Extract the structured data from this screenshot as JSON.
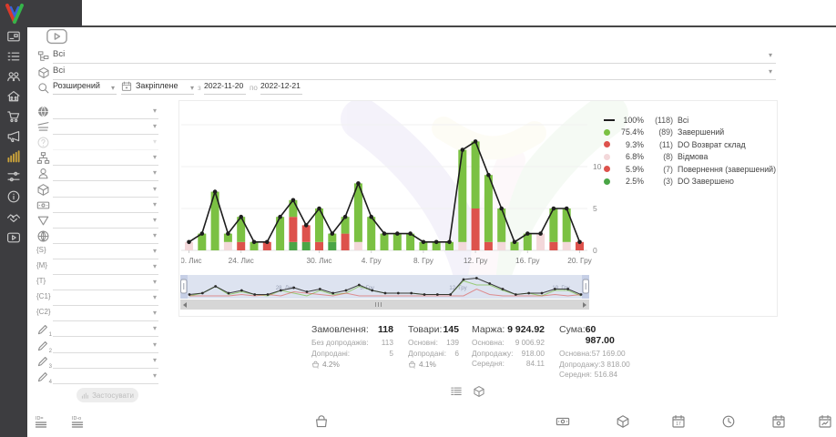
{
  "brand": {
    "logo": "v-logo"
  },
  "sidebar": {
    "items": [
      {
        "icon": "card-icon"
      },
      {
        "icon": "list-icon"
      },
      {
        "icon": "users-icon"
      },
      {
        "icon": "home-users-icon"
      },
      {
        "icon": "cart-icon"
      },
      {
        "icon": "megaphone-icon"
      },
      {
        "icon": "bar-chart-icon",
        "active": true
      },
      {
        "icon": "sliders-icon"
      },
      {
        "icon": "info-icon"
      },
      {
        "icon": "handshake-icon"
      },
      {
        "icon": "video-icon"
      }
    ]
  },
  "header": {
    "video_button_icon": "play-icon",
    "filter_rows": [
      {
        "icon": "org-tree-icon",
        "value": "Всі"
      },
      {
        "icon": "cube-icon",
        "value": "Всі"
      }
    ],
    "search": {
      "icon": "search-icon",
      "mode": "Розширений"
    },
    "period": {
      "icon": "calendar-icon",
      "mode": "Закріплене",
      "from_label": "з",
      "from": "2022-11-20",
      "to_label": "по",
      "to": "2022-12-21"
    }
  },
  "filter_panel": {
    "rows": [
      {
        "icon": "globe-solid-icon"
      },
      {
        "icon": "sort-lines-icon"
      },
      {
        "icon": "help-circle-icon",
        "muted": true
      },
      {
        "icon": "sitemap-icon"
      },
      {
        "icon": "person-icon"
      },
      {
        "icon": "cube-icon"
      },
      {
        "icon": "banknote-icon"
      },
      {
        "icon": "funnel-icon"
      },
      {
        "icon": "globe-grid-icon"
      },
      {
        "icon": "braces-s-icon",
        "glyph": "{S}"
      },
      {
        "icon": "braces-m-icon",
        "glyph": "{М}"
      },
      {
        "icon": "braces-t-icon",
        "glyph": "{Т}"
      },
      {
        "icon": "braces-c1-icon",
        "glyph": "{С1}"
      },
      {
        "icon": "braces-c2-icon",
        "glyph": "{С2}"
      },
      {
        "icon": "pencil-1-icon",
        "num": "1"
      },
      {
        "icon": "pencil-2-icon",
        "num": "2"
      },
      {
        "icon": "pencil-3-icon",
        "num": "3"
      },
      {
        "icon": "pencil-4-icon",
        "num": "4"
      }
    ],
    "apply_button": {
      "icon": "mini-bars-icon",
      "label": "Застосувати"
    }
  },
  "chart_data": {
    "type": "bar",
    "stacked": true,
    "overlay_line": true,
    "start_date": "2022-11-20",
    "end_date": "2022-12-20",
    "x_tick_labels": [
      {
        "label": "20. Лис",
        "index": 0
      },
      {
        "label": "24. Лис",
        "index": 4
      },
      {
        "label": "30. Лис",
        "index": 10
      },
      {
        "label": "4. Гру",
        "index": 14
      },
      {
        "label": "8. Гру",
        "index": 18
      },
      {
        "label": "12. Гру",
        "index": 22
      },
      {
        "label": "16. Гру",
        "index": 26
      },
      {
        "label": "20. Гру",
        "index": 30
      }
    ],
    "yticks": [
      0,
      5,
      10
    ],
    "ylim": [
      0,
      15
    ],
    "line_series": {
      "name": "Всі",
      "color": "#1d1d1d",
      "values": [
        1,
        2,
        7,
        2,
        4,
        1,
        1,
        4,
        6,
        3,
        5,
        2,
        4,
        8,
        4,
        2,
        2,
        2,
        1,
        1,
        1,
        12,
        13,
        9,
        5,
        1,
        2,
        2,
        5,
        5,
        1
      ]
    },
    "series": [
      {
        "name": "DO Завершено",
        "color": "#4aa546",
        "values": [
          0,
          0,
          0,
          0,
          0,
          0,
          0,
          0,
          1,
          1,
          0,
          1,
          0,
          0,
          0,
          0,
          0,
          0,
          0,
          0,
          0,
          0,
          0,
          0,
          0,
          0,
          0,
          0,
          0,
          0,
          0
        ]
      },
      {
        "name": "Повернення (завершений)",
        "color": "#dd524c",
        "values": [
          0,
          0,
          0,
          0,
          1,
          0,
          1,
          0,
          0,
          0,
          1,
          0,
          2,
          0,
          0,
          0,
          0,
          0,
          0,
          0,
          0,
          0,
          0,
          0,
          0,
          0,
          0,
          0,
          1,
          0,
          1
        ]
      },
      {
        "name": "Відмова",
        "color": "#f3d8da",
        "values": [
          1,
          0,
          0,
          1,
          0,
          0,
          0,
          0,
          0,
          0,
          0,
          0,
          0,
          1,
          0,
          0,
          0,
          0,
          0,
          0,
          0,
          1,
          0,
          0,
          1,
          0,
          0,
          2,
          0,
          1,
          0
        ]
      },
      {
        "name": "DO Возврат склад",
        "color": "#dd524c",
        "values": [
          0,
          0,
          0,
          0,
          0,
          0,
          0,
          0,
          3,
          2,
          0,
          0,
          0,
          0,
          0,
          0,
          0,
          0,
          0,
          0,
          0,
          0,
          5,
          1,
          0,
          0,
          0,
          0,
          0,
          0,
          0
        ]
      },
      {
        "name": "Завершений",
        "color": "#7bc143",
        "values": [
          0,
          2,
          7,
          1,
          3,
          1,
          0,
          4,
          2,
          0,
          4,
          1,
          2,
          7,
          4,
          2,
          2,
          2,
          1,
          1,
          1,
          11,
          8,
          8,
          4,
          1,
          2,
          0,
          4,
          4,
          0
        ]
      }
    ],
    "legend": [
      {
        "swatch": "line",
        "color": "#1d1d1d",
        "pct": "100%",
        "count": "(118)",
        "label": "Всі"
      },
      {
        "swatch": "dot",
        "color": "#7bc143",
        "pct": "75.4%",
        "count": "(89)",
        "label": "Завершений"
      },
      {
        "swatch": "dot",
        "color": "#dd524c",
        "pct": "9.3%",
        "count": "(11)",
        "label": "DO Возврат склад"
      },
      {
        "swatch": "dot",
        "color": "#f3d8da",
        "pct": "6.8%",
        "count": "(8)",
        "label": "Відмова"
      },
      {
        "swatch": "dot",
        "color": "#dd524c",
        "pct": "5.9%",
        "count": "(7)",
        "label": "Повернення (завершений)"
      },
      {
        "swatch": "dot",
        "color": "#4aa546",
        "pct": "2.5%",
        "count": "(3)",
        "label": "DO Завершено"
      }
    ],
    "minimap": {
      "labels": [
        "28. Лис",
        "5. Гру",
        "12. Гру",
        "19. Гру"
      ]
    }
  },
  "stats": {
    "columns": [
      {
        "title": "Замовлення:",
        "value": "118",
        "rows": [
          {
            "label": "Без допродажів:",
            "value": "113"
          },
          {
            "label": "Допродані:",
            "value": "5"
          }
        ],
        "rate": {
          "icon": "bag-x-icon",
          "value": "4.2%"
        }
      },
      {
        "title": "Товари:",
        "value": "145",
        "rows": [
          {
            "label": "Основні:",
            "value": "139"
          },
          {
            "label": "Допродані:",
            "value": "6"
          }
        ],
        "rate": {
          "icon": "bag-x-icon",
          "value": "4.1%"
        }
      },
      {
        "title": "Маржа:",
        "value": "9 924.92",
        "rows": [
          {
            "label": "Основна:",
            "value": "9 006.92"
          },
          {
            "label": "Допродажу:",
            "value": "918.00"
          },
          {
            "label": "Середня:",
            "value": "84.11"
          }
        ]
      },
      {
        "title": "Сума:",
        "value": "60 987.00",
        "rows": [
          {
            "label": "Основна:",
            "value": "57 169.00"
          },
          {
            "label": "Допродажу:",
            "value": "3 818.00"
          },
          {
            "label": "Середня:",
            "value": "516.84"
          }
        ]
      }
    ]
  },
  "view_toggles": [
    {
      "icon": "list-view-icon"
    },
    {
      "icon": "cube-icon"
    }
  ],
  "bottom_toolbar": {
    "icons": [
      "id-equals-icon",
      "id-dash-icon",
      "bag-icon",
      "banknote-icon",
      "cube-icon",
      "calendar-date-icon",
      "clock-icon",
      "calendar-money-icon",
      "calendar-chart-icon"
    ]
  }
}
